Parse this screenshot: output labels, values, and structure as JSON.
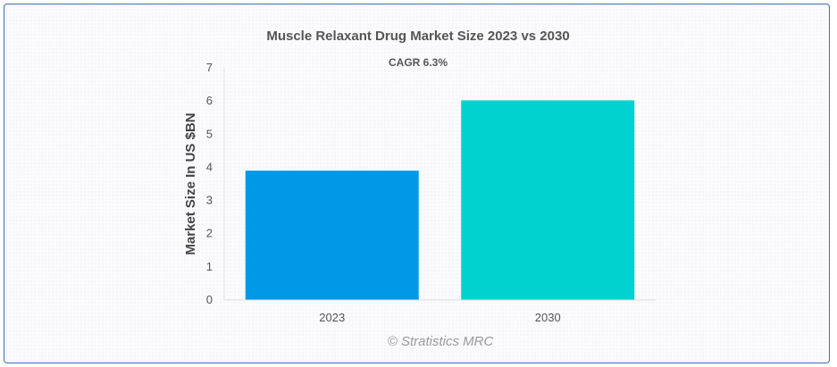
{
  "chart_data": {
    "type": "bar",
    "title": "Muscle Relaxant Drug Market Size 2023 vs 2030",
    "subtitle": "CAGR 6.3%",
    "categories": [
      "2023",
      "2030"
    ],
    "values": [
      3.9,
      6.02
    ],
    "colors": [
      "#0099e6",
      "#00d1d1"
    ],
    "xlabel": "",
    "ylabel": "Market Size In US $BN",
    "ylim": [
      0,
      7
    ],
    "yticks": [
      "0",
      "1",
      "2",
      "3",
      "4",
      "5",
      "6",
      "7"
    ],
    "grid": false,
    "legend": "none"
  },
  "credit": "© Stratistics MRC"
}
